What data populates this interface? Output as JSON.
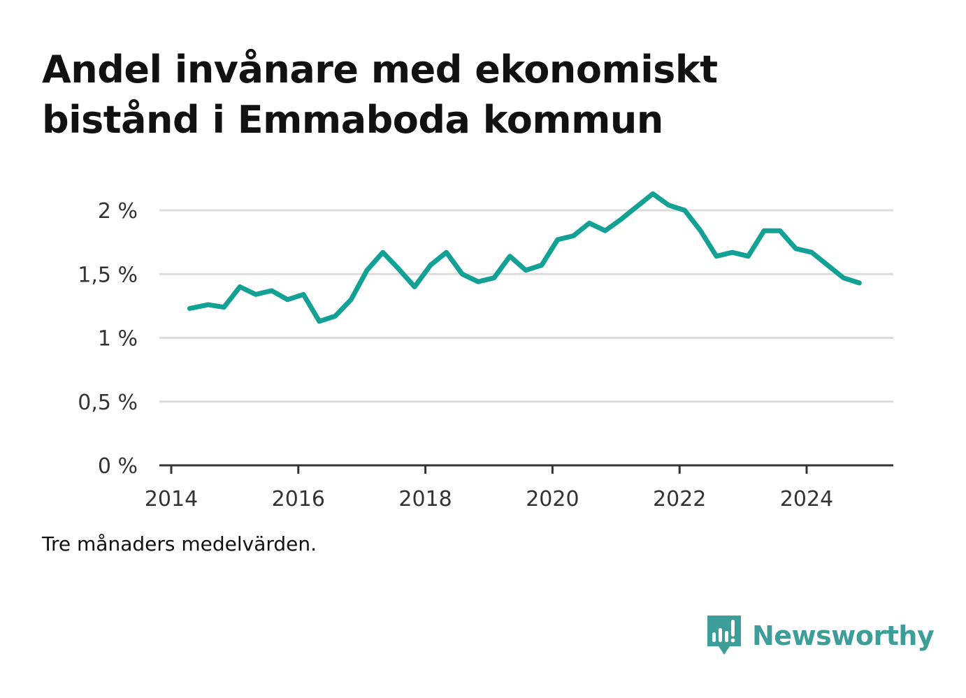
{
  "header": {
    "title_line1": "Andel invånare med ekonomiskt",
    "title_line2": "bistånd i Emmaboda kommun"
  },
  "note": "Tre månaders medelvärden.",
  "brand": {
    "name": "Newsworthy",
    "color": "#3d9e99"
  },
  "colors": {
    "line": "#12a194",
    "grid": "#dcdcdc",
    "axis": "#333333"
  },
  "chart_data": {
    "type": "line",
    "title": "Andel invånare med ekonomiskt bistånd i Emmaboda kommun",
    "xlabel": "",
    "ylabel": "",
    "xlim": [
      2014,
      2025.35
    ],
    "ylim": [
      0,
      2.2
    ],
    "grid": true,
    "x_ticks": [
      2014,
      2016,
      2018,
      2020,
      2022,
      2024
    ],
    "x_tick_labels": [
      "2014",
      "2016",
      "2018",
      "2020",
      "2022",
      "2024"
    ],
    "y_ticks": [
      0,
      0.5,
      1,
      1.5,
      2
    ],
    "y_tick_labels": [
      "0 %",
      "0,5 %",
      "1 %",
      "1,5 %",
      "2 %"
    ],
    "series": [
      {
        "x": [
          2014.29,
          2014.58,
          2014.83,
          2015.08,
          2015.33,
          2015.58,
          2015.83,
          2016.08,
          2016.33,
          2016.58,
          2016.83,
          2017.08,
          2017.33,
          2017.58,
          2017.83,
          2018.08,
          2018.33,
          2018.58,
          2018.83,
          2019.08,
          2019.33,
          2019.58,
          2019.83,
          2020.08,
          2020.33,
          2020.58,
          2020.83,
          2021.08,
          2021.33,
          2021.58,
          2021.83,
          2022.08,
          2022.33,
          2022.58,
          2022.83,
          2023.08,
          2023.33,
          2023.58,
          2023.83,
          2024.08,
          2024.33,
          2024.58,
          2024.83
        ],
        "values": [
          1.23,
          1.26,
          1.24,
          1.4,
          1.34,
          1.37,
          1.3,
          1.34,
          1.13,
          1.17,
          1.3,
          1.53,
          1.67,
          1.54,
          1.4,
          1.57,
          1.67,
          1.5,
          1.44,
          1.47,
          1.64,
          1.53,
          1.57,
          1.77,
          1.8,
          1.9,
          1.84,
          1.93,
          2.03,
          2.13,
          2.04,
          2.0,
          1.84,
          1.64,
          1.67,
          1.64,
          1.84,
          1.84,
          1.7,
          1.67,
          1.57,
          1.47,
          1.43
        ]
      }
    ]
  }
}
